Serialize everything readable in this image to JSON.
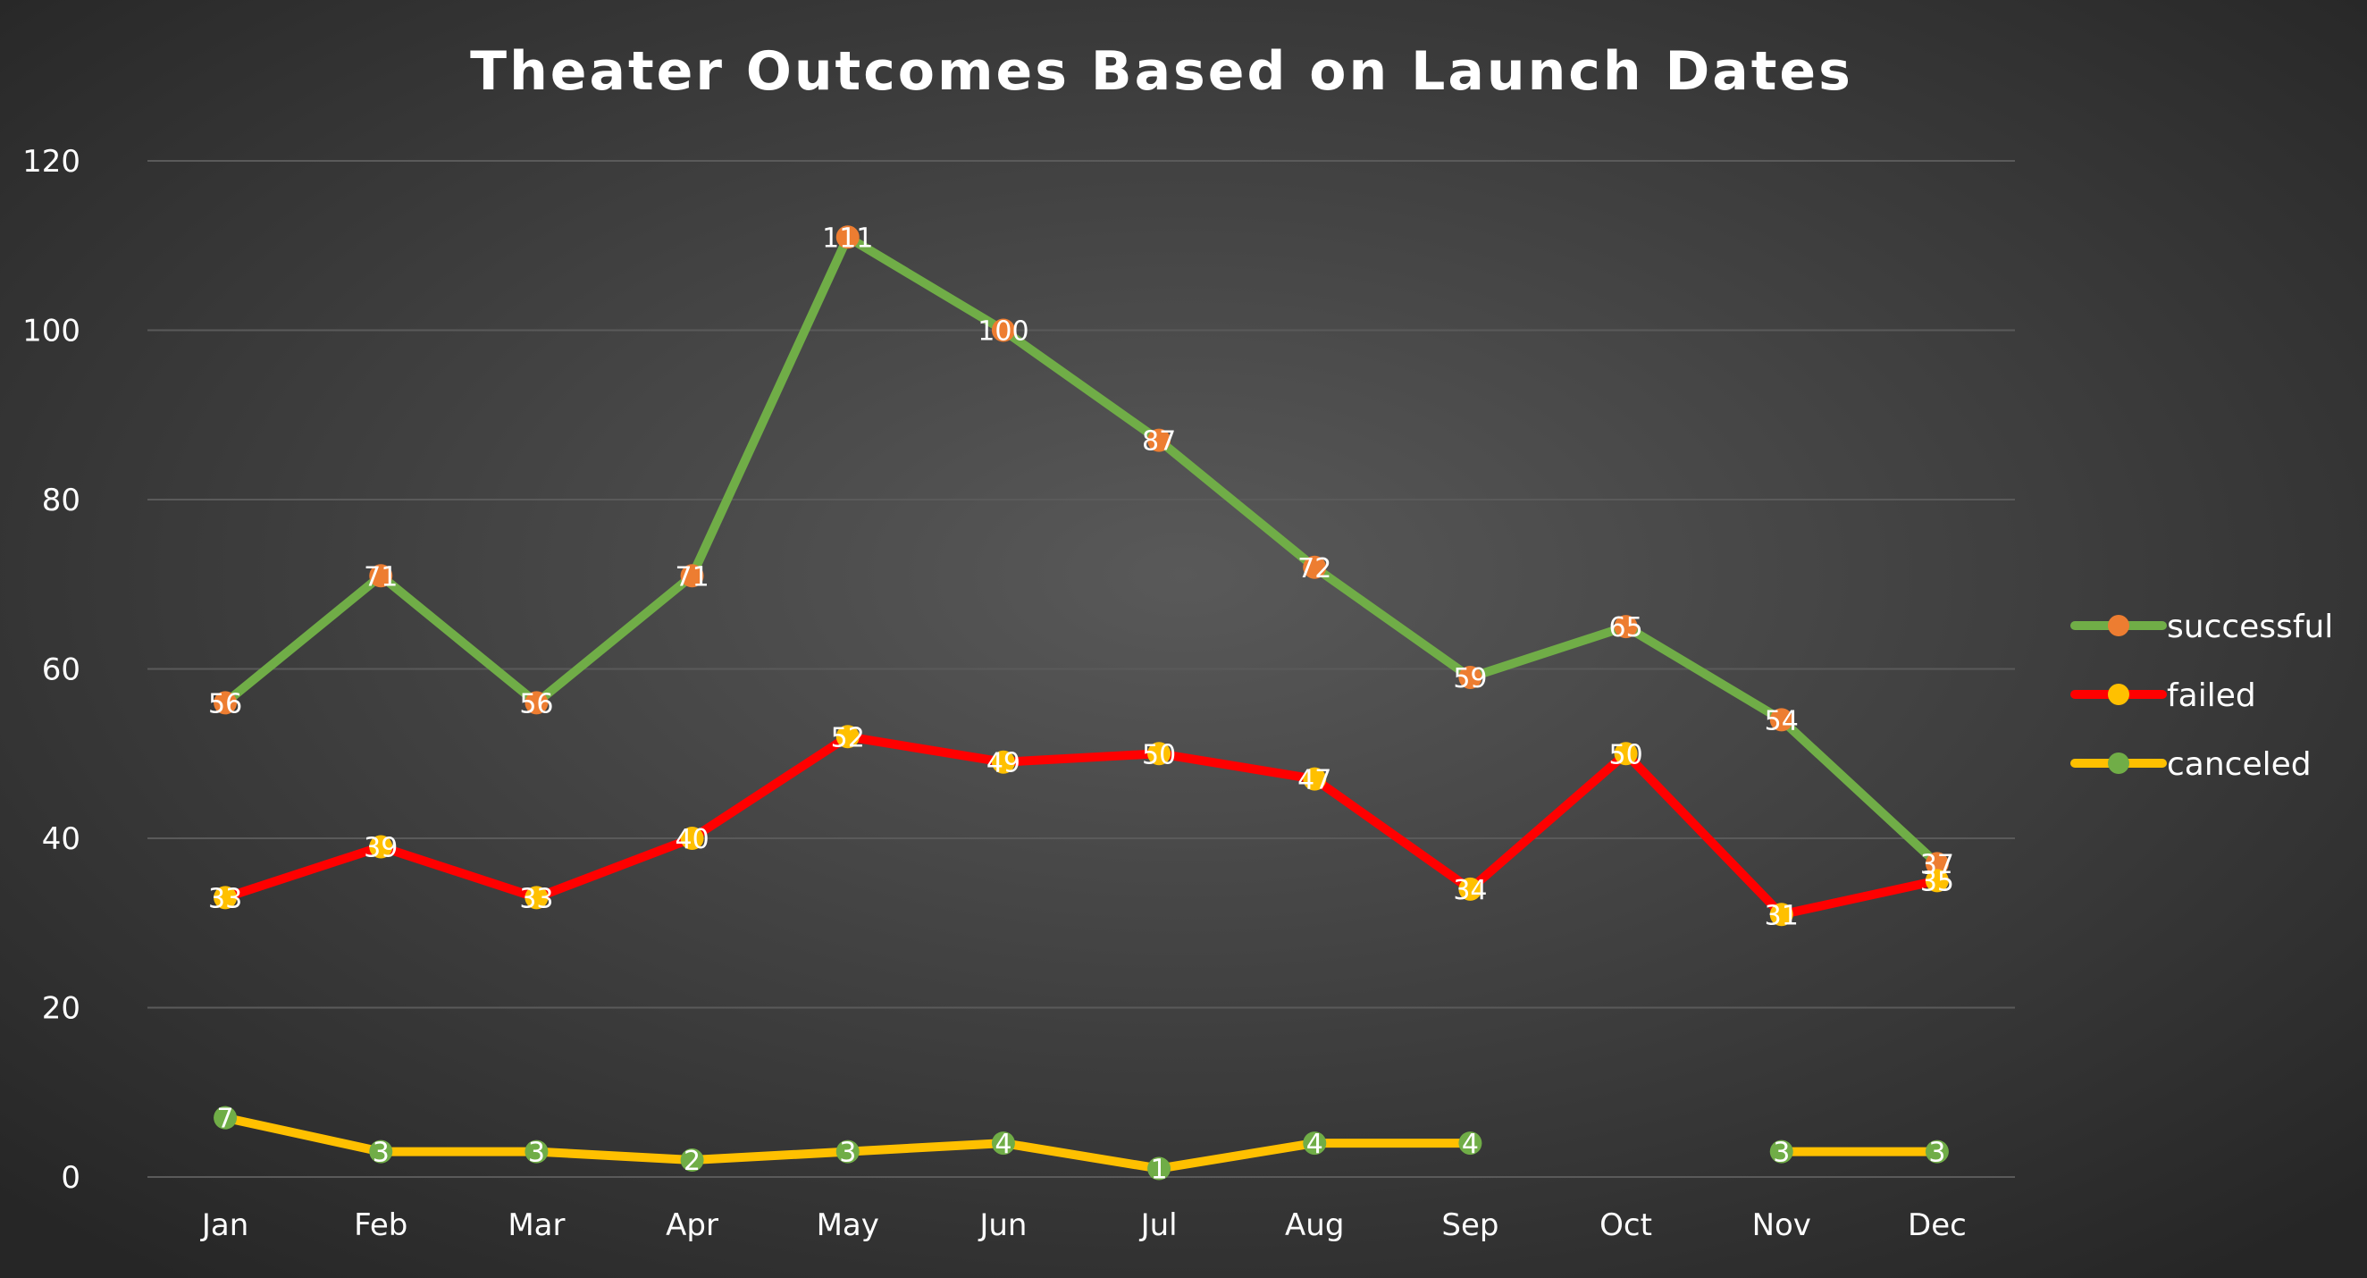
{
  "chart_data": {
    "type": "line",
    "title": "Theater Outcomes Based on Launch Dates",
    "xlabel": "",
    "ylabel": "",
    "categories": [
      "Jan",
      "Feb",
      "Mar",
      "Apr",
      "May",
      "Jun",
      "Jul",
      "Aug",
      "Sep",
      "Oct",
      "Nov",
      "Dec"
    ],
    "ylim": [
      0,
      120
    ],
    "yticks": [
      0,
      20,
      40,
      60,
      80,
      100,
      120
    ],
    "grid": true,
    "legend_position": "right",
    "series": [
      {
        "name": "successful",
        "values": [
          56,
          71,
          56,
          71,
          111,
          100,
          87,
          72,
          59,
          65,
          54,
          37
        ],
        "line_color": "#70ad47",
        "marker_color": "#ed7d31"
      },
      {
        "name": "failed",
        "values": [
          33,
          39,
          33,
          40,
          52,
          49,
          50,
          47,
          34,
          50,
          31,
          35
        ],
        "line_color": "#ff0000",
        "marker_color": "#ffc000"
      },
      {
        "name": "canceled",
        "values": [
          7,
          3,
          3,
          2,
          3,
          4,
          1,
          4,
          4,
          null,
          3,
          3
        ],
        "line_color": "#ffc000",
        "marker_color": "#70ad47"
      }
    ]
  }
}
